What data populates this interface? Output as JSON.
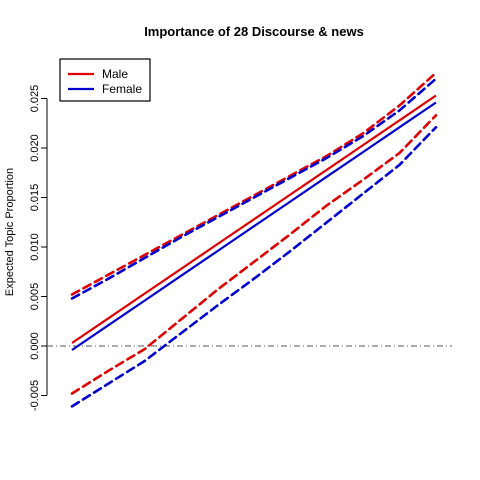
{
  "chart_data": {
    "type": "line",
    "title": "Importance of 28 Discourse & news",
    "ylabel": "Expected Topic Proportion",
    "xlabel": "",
    "xlim": [
      0,
      1
    ],
    "ylim": [
      -0.0065,
      0.0285
    ],
    "yticks": [
      -0.005,
      0.0,
      0.005,
      0.01,
      0.015,
      0.02,
      0.025
    ],
    "ytick_labels": [
      "-0.005",
      "0.000",
      "0.005",
      "0.010",
      "0.015",
      "0.020",
      "0.025"
    ],
    "reference_line": 0.0,
    "legend": {
      "position": "top-left"
    },
    "x": [
      0,
      0.1,
      0.2,
      0.3,
      0.4,
      0.5,
      0.6,
      0.7,
      0.8,
      0.9,
      1.0
    ],
    "series": [
      {
        "name": "Male",
        "color": "#dd0000",
        "estimate": [
          0.0003,
          0.0028,
          0.0053,
          0.0078,
          0.0103,
          0.0128,
          0.0153,
          0.0178,
          0.0203,
          0.0228,
          0.0253
        ],
        "upper": [
          0.0052,
          0.0072,
          0.0092,
          0.0112,
          0.0132,
          0.0152,
          0.0172,
          0.0192,
          0.0215,
          0.0243,
          0.0276
        ],
        "lower": [
          -0.0048,
          -0.0025,
          -0.0003,
          0.0027,
          0.0057,
          0.0085,
          0.0113,
          0.0142,
          0.0168,
          0.0195,
          0.0233
        ]
      },
      {
        "name": "Female",
        "color": "#0000cc",
        "estimate": [
          -0.0004,
          0.0021,
          0.0046,
          0.0071,
          0.0096,
          0.0121,
          0.0146,
          0.0171,
          0.0196,
          0.0221,
          0.0246
        ],
        "upper": [
          0.0048,
          0.0068,
          0.0089,
          0.011,
          0.013,
          0.015,
          0.017,
          0.019,
          0.0212,
          0.0238,
          0.027
        ],
        "lower": [
          -0.0061,
          -0.0038,
          -0.0015,
          0.0013,
          0.0041,
          0.0068,
          0.0096,
          0.0125,
          0.0154,
          0.0183,
          0.0221
        ]
      }
    ]
  }
}
